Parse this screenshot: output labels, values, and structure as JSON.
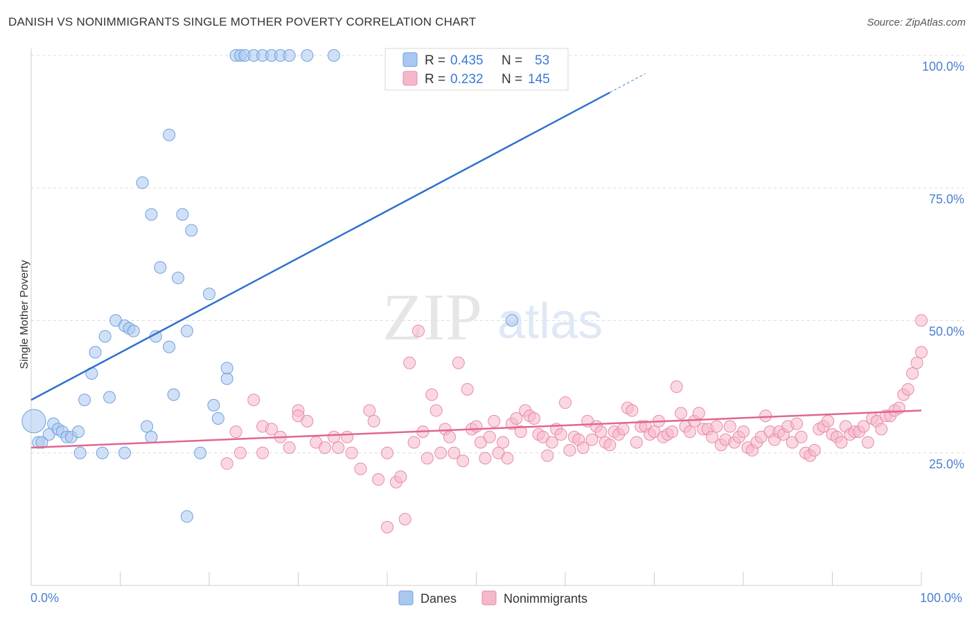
{
  "header": {
    "title": "DANISH VS NONIMMIGRANTS SINGLE MOTHER POVERTY CORRELATION CHART",
    "source": "Source: ZipAtlas.com"
  },
  "watermark": {
    "zip": "ZIP",
    "atlas": "atlas"
  },
  "legend": {
    "danes": {
      "r_label": "R =",
      "r": "0.435",
      "n_label": "N =",
      "n": "53",
      "color": "#a9c8f0"
    },
    "nonimmigrants": {
      "r_label": "R =",
      "r": "0.232",
      "n_label": "N =",
      "n": "145",
      "color": "#f5b8ca"
    }
  },
  "bottom_legend": {
    "danes": "Danes",
    "nonimmigrants": "Nonimmigrants"
  },
  "colors": {
    "danes_fill": "#a9c8f0",
    "danes_stroke": "#6f9fdc",
    "danes_line": "#2f6fcf",
    "non_fill": "#f5b8ca",
    "non_stroke": "#e88aa6",
    "non_line": "#e0668f"
  },
  "chart_data": {
    "type": "scatter",
    "ylabel": "Single Mother Poverty",
    "xlim": [
      0,
      100
    ],
    "ylim": [
      0,
      100
    ],
    "x_tick_labels": [
      "0.0%",
      "100.0%"
    ],
    "y_tick_labels": [
      "25.0%",
      "50.0%",
      "75.0%",
      "100.0%"
    ],
    "y_ticks": [
      25,
      50,
      75,
      100
    ],
    "series": [
      {
        "name": "Danes",
        "trend": {
          "x0": 0,
          "y0": 35,
          "x1": 65,
          "y1": 93
        },
        "points": [
          [
            0.3,
            31,
            2
          ],
          [
            0.8,
            27,
            1
          ],
          [
            1.2,
            27,
            1
          ],
          [
            2,
            28.5,
            1
          ],
          [
            2.5,
            30.5,
            1
          ],
          [
            3,
            29.5,
            1
          ],
          [
            3.5,
            29,
            1
          ],
          [
            4,
            28,
            1
          ],
          [
            4.5,
            28,
            1
          ],
          [
            5.3,
            29,
            1
          ],
          [
            5.5,
            25,
            1
          ],
          [
            6,
            35,
            1
          ],
          [
            6.8,
            40,
            1
          ],
          [
            7.2,
            44,
            1
          ],
          [
            8,
            25,
            1
          ],
          [
            8.3,
            47,
            1
          ],
          [
            8.8,
            35.5,
            1
          ],
          [
            9.5,
            50,
            1
          ],
          [
            10.5,
            49,
            1
          ],
          [
            10.5,
            25,
            1
          ],
          [
            11,
            48.5,
            1
          ],
          [
            11.5,
            48,
            1
          ],
          [
            12.5,
            76,
            1
          ],
          [
            13,
            30,
            1
          ],
          [
            13.5,
            70,
            1
          ],
          [
            13.5,
            28,
            1
          ],
          [
            14,
            47,
            1
          ],
          [
            14.5,
            60,
            1
          ],
          [
            15.5,
            45,
            1
          ],
          [
            15.5,
            85,
            1
          ],
          [
            16,
            36,
            1
          ],
          [
            16.5,
            58,
            1
          ],
          [
            17,
            70,
            1
          ],
          [
            17.5,
            48,
            1
          ],
          [
            17.5,
            13,
            1
          ],
          [
            18,
            67,
            1
          ],
          [
            19,
            25,
            1
          ],
          [
            20,
            55,
            1
          ],
          [
            20.5,
            34,
            1
          ],
          [
            21,
            31.5,
            1
          ],
          [
            22,
            39,
            1
          ],
          [
            22,
            41,
            1
          ],
          [
            23,
            100,
            1
          ],
          [
            23.5,
            100,
            1
          ],
          [
            24,
            100,
            1
          ],
          [
            25,
            100,
            1
          ],
          [
            26,
            100,
            1
          ],
          [
            27,
            100,
            1
          ],
          [
            28,
            100,
            1
          ],
          [
            29,
            100,
            1
          ],
          [
            31,
            100,
            1
          ],
          [
            34,
            100,
            1
          ],
          [
            54,
            50,
            1
          ]
        ]
      },
      {
        "name": "Nonimmigrants",
        "trend": {
          "x0": 0,
          "y0": 26,
          "x1": 100,
          "y1": 33
        },
        "points": [
          [
            22,
            23
          ],
          [
            23,
            29
          ],
          [
            23.5,
            25
          ],
          [
            25,
            35
          ],
          [
            26,
            30
          ],
          [
            26,
            25
          ],
          [
            27,
            29.5
          ],
          [
            28,
            28
          ],
          [
            29,
            26
          ],
          [
            30,
            33
          ],
          [
            30,
            32
          ],
          [
            31,
            31
          ],
          [
            32,
            27
          ],
          [
            33,
            26
          ],
          [
            34,
            28
          ],
          [
            34.5,
            26
          ],
          [
            35.5,
            28
          ],
          [
            36,
            25
          ],
          [
            37,
            22
          ],
          [
            38,
            33
          ],
          [
            38.5,
            31
          ],
          [
            39,
            20
          ],
          [
            40,
            25
          ],
          [
            40,
            11
          ],
          [
            41,
            19.5
          ],
          [
            41.5,
            20.5
          ],
          [
            42,
            12.5
          ],
          [
            42.5,
            42
          ],
          [
            43,
            27
          ],
          [
            43.5,
            48
          ],
          [
            44,
            29
          ],
          [
            44.5,
            24
          ],
          [
            45,
            36
          ],
          [
            45.5,
            33
          ],
          [
            46,
            25
          ],
          [
            46.5,
            29.5
          ],
          [
            47,
            28
          ],
          [
            47.5,
            25
          ],
          [
            48,
            42
          ],
          [
            48.5,
            23.5
          ],
          [
            49,
            37
          ],
          [
            49.5,
            29.5
          ],
          [
            50,
            30
          ],
          [
            50.5,
            27
          ],
          [
            51,
            24
          ],
          [
            51.5,
            28
          ],
          [
            52,
            31
          ],
          [
            52.5,
            25
          ],
          [
            53,
            27
          ],
          [
            53.5,
            24
          ],
          [
            54,
            30.5
          ],
          [
            54.5,
            31.5
          ],
          [
            55,
            29
          ],
          [
            55.5,
            33
          ],
          [
            56,
            32
          ],
          [
            56.5,
            31.5
          ],
          [
            57,
            28.5
          ],
          [
            57.5,
            28
          ],
          [
            58,
            24.5
          ],
          [
            58.5,
            27
          ],
          [
            59,
            29.5
          ],
          [
            59.5,
            28.5
          ],
          [
            60,
            34.5
          ],
          [
            60.5,
            25.5
          ],
          [
            61,
            28
          ],
          [
            61.5,
            27.5
          ],
          [
            62,
            26
          ],
          [
            62.5,
            31
          ],
          [
            63,
            27.5
          ],
          [
            63.5,
            30
          ],
          [
            64,
            29
          ],
          [
            64.5,
            27
          ],
          [
            65,
            26.5
          ],
          [
            65.5,
            29
          ],
          [
            66,
            28.5
          ],
          [
            66.5,
            29.5
          ],
          [
            67,
            33.5
          ],
          [
            67.5,
            33
          ],
          [
            68,
            27
          ],
          [
            68.5,
            30
          ],
          [
            69,
            30
          ],
          [
            69.5,
            28.5
          ],
          [
            70,
            29
          ],
          [
            70.5,
            31
          ],
          [
            71,
            28
          ],
          [
            71.5,
            28.5
          ],
          [
            72,
            29
          ],
          [
            72.5,
            37.5
          ],
          [
            73,
            32.5
          ],
          [
            73.5,
            30
          ],
          [
            74,
            29
          ],
          [
            74.5,
            31
          ],
          [
            75,
            32.5
          ],
          [
            75.5,
            29.5
          ],
          [
            76,
            29.5
          ],
          [
            76.5,
            28
          ],
          [
            77,
            30
          ],
          [
            77.5,
            26.5
          ],
          [
            78,
            27.5
          ],
          [
            78.5,
            30
          ],
          [
            79,
            27
          ],
          [
            79.5,
            28
          ],
          [
            80,
            29
          ],
          [
            80.5,
            26
          ],
          [
            81,
            25.5
          ],
          [
            81.5,
            27
          ],
          [
            82,
            28
          ],
          [
            82.5,
            32
          ],
          [
            83,
            29
          ],
          [
            83.5,
            27.5
          ],
          [
            84,
            29
          ],
          [
            84.5,
            28.5
          ],
          [
            85,
            30
          ],
          [
            85.5,
            27
          ],
          [
            86,
            30.5
          ],
          [
            86.5,
            28
          ],
          [
            87,
            25
          ],
          [
            87.5,
            24.5
          ],
          [
            88,
            25.5
          ],
          [
            88.5,
            29.5
          ],
          [
            89,
            30
          ],
          [
            89.5,
            31
          ],
          [
            90,
            28.5
          ],
          [
            90.5,
            28
          ],
          [
            91,
            27
          ],
          [
            91.5,
            30
          ],
          [
            92,
            28.5
          ],
          [
            92.5,
            29
          ],
          [
            93,
            29
          ],
          [
            93.5,
            30
          ],
          [
            94,
            27
          ],
          [
            94.5,
            31.5
          ],
          [
            95,
            31
          ],
          [
            95.5,
            29.5
          ],
          [
            96,
            32
          ],
          [
            96.5,
            32
          ],
          [
            97,
            33
          ],
          [
            97.5,
            33.5
          ],
          [
            98,
            36
          ],
          [
            98.5,
            37
          ],
          [
            99,
            40
          ],
          [
            99.5,
            42
          ],
          [
            100,
            44
          ],
          [
            100,
            50
          ]
        ]
      }
    ]
  }
}
